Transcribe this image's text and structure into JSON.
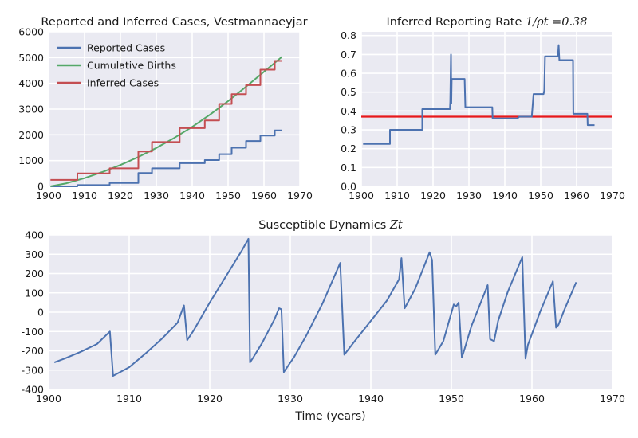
{
  "colors": {
    "blue": "#4C72B0",
    "green": "#55A868",
    "red": "#C44E52",
    "ref_red": "#E8191B",
    "panel_bg": "#EAEAF2"
  },
  "chart_data": [
    {
      "type": "line",
      "title": "Reported and Inferred Cases, Vestmannaeyjar",
      "xlim": [
        1900,
        1970
      ],
      "ylim": [
        0,
        6000
      ],
      "xticks": [
        1900,
        1910,
        1920,
        1930,
        1940,
        1950,
        1960,
        1970
      ],
      "yticks": [
        0,
        1000,
        2000,
        3000,
        4000,
        5000,
        6000
      ],
      "legend_position": "top-left",
      "series": [
        {
          "name": "Reported Cases",
          "color": "#4C72B0",
          "x": [
            1900.5,
            1908,
            1908,
            1917,
            1917,
            1925,
            1925,
            1928.8,
            1928.8,
            1936.5,
            1936.5,
            1943.5,
            1943.5,
            1947.5,
            1947.5,
            1951,
            1951,
            1955,
            1955,
            1959,
            1959,
            1963,
            1963,
            1965
          ],
          "y": [
            0,
            0,
            50,
            50,
            130,
            130,
            520,
            520,
            700,
            700,
            900,
            900,
            1020,
            1020,
            1250,
            1250,
            1500,
            1500,
            1760,
            1760,
            1970,
            1970,
            2170,
            2170
          ]
        },
        {
          "name": "Cumulative Births",
          "color": "#55A868",
          "x": [
            1900.5,
            1905,
            1910,
            1915,
            1920,
            1925,
            1930,
            1935,
            1940,
            1945,
            1950,
            1955,
            1960,
            1965
          ],
          "y": [
            0,
            120,
            320,
            560,
            830,
            1140,
            1490,
            1880,
            2310,
            2790,
            3310,
            3870,
            4450,
            5030
          ]
        },
        {
          "name": "Inferred Cases",
          "color": "#C44E52",
          "x": [
            1900.5,
            1908,
            1908,
            1917,
            1917,
            1925,
            1925,
            1928.8,
            1928.8,
            1936.5,
            1936.5,
            1943.5,
            1943.5,
            1947.5,
            1947.5,
            1951,
            1951,
            1955,
            1955,
            1959,
            1959,
            1963,
            1963,
            1965
          ],
          "y": [
            250,
            250,
            500,
            500,
            700,
            700,
            1350,
            1350,
            1720,
            1720,
            2260,
            2260,
            2560,
            2560,
            3200,
            3200,
            3580,
            3580,
            3930,
            3930,
            4530,
            4530,
            4870,
            4870
          ]
        }
      ]
    },
    {
      "type": "line",
      "title": "Inferred Reporting Rate",
      "title_math": "1/ρt =0.38",
      "xlim": [
        1900,
        1970
      ],
      "ylim": [
        0,
        0.82
      ],
      "xticks": [
        1900,
        1910,
        1920,
        1930,
        1940,
        1950,
        1960,
        1970
      ],
      "yticks": [
        0.0,
        0.1,
        0.2,
        0.3,
        0.4,
        0.5,
        0.6,
        0.7,
        0.8
      ],
      "ytick_labels": [
        "0.0",
        "0.1",
        "0.2",
        "0.3",
        "0.4",
        "0.5",
        "0.6",
        "0.7",
        "0.8"
      ],
      "reference_line": {
        "y": 0.37,
        "color": "#E8191B"
      },
      "series": [
        {
          "color": "#4C72B0",
          "x": [
            1900.5,
            1908,
            1908,
            1917,
            1917,
            1924.7,
            1924.8,
            1925,
            1925.1,
            1925.2,
            1928.8,
            1929,
            1936.5,
            1936.6,
            1943.5,
            1944,
            1947.5,
            1948,
            1950.8,
            1951,
            1951.2,
            1954.8,
            1955,
            1955.2,
            1959,
            1959.1,
            1963,
            1963.1,
            1965
          ],
          "y": [
            0.225,
            0.225,
            0.3,
            0.3,
            0.41,
            0.41,
            0.45,
            0.7,
            0.44,
            0.57,
            0.57,
            0.42,
            0.42,
            0.36,
            0.36,
            0.37,
            0.37,
            0.49,
            0.49,
            0.51,
            0.69,
            0.69,
            0.75,
            0.67,
            0.67,
            0.385,
            0.385,
            0.325,
            0.325
          ]
        }
      ]
    },
    {
      "type": "line",
      "title": "Susceptible Dynamics",
      "title_math": "Zt",
      "xlabel": "Time (years)",
      "xlim": [
        1900,
        1970
      ],
      "ylim": [
        -400,
        400
      ],
      "xticks": [
        1900,
        1910,
        1920,
        1930,
        1940,
        1950,
        1960,
        1970
      ],
      "yticks": [
        -400,
        -300,
        -200,
        -100,
        0,
        100,
        200,
        300,
        400
      ],
      "series": [
        {
          "color": "#4C72B0",
          "x": [
            1900.7,
            1902,
            1904,
            1906,
            1907.6,
            1908,
            1910,
            1912,
            1914,
            1916,
            1916.8,
            1917.2,
            1918,
            1920,
            1922,
            1924,
            1924.8,
            1925,
            1925.4,
            1926.5,
            1928,
            1928.6,
            1928.9,
            1929.2,
            1930.5,
            1932,
            1934,
            1936.2,
            1936.7,
            1938,
            1940,
            1942,
            1943.5,
            1943.8,
            1944.2,
            1945.5,
            1946.5,
            1947.3,
            1947.6,
            1948,
            1949,
            1950.3,
            1950.6,
            1950.9,
            1951.3,
            1951.6,
            1952.5,
            1954.5,
            1954.8,
            1955.3,
            1955.8,
            1957,
            1958.8,
            1959.2,
            1959.5,
            1961,
            1962.6,
            1963,
            1963.3,
            1964,
            1965.5
          ],
          "y": [
            -260,
            -240,
            -205,
            -165,
            -100,
            -330,
            -285,
            -215,
            -140,
            -55,
            35,
            -145,
            -95,
            50,
            185,
            320,
            380,
            -260,
            -235,
            -160,
            -40,
            20,
            15,
            -310,
            -230,
            -120,
            45,
            255,
            -220,
            -150,
            -45,
            60,
            170,
            280,
            20,
            120,
            225,
            310,
            270,
            -220,
            -150,
            40,
            30,
            50,
            -235,
            -195,
            -70,
            140,
            -140,
            -150,
            -45,
            105,
            285,
            -240,
            -170,
            0,
            160,
            -80,
            -65,
            10,
            155
          ]
        }
      ]
    }
  ]
}
